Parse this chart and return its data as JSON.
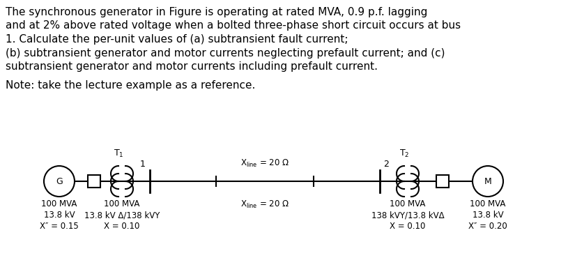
{
  "text_block": [
    "The synchronous generator in Figure is operating at rated MVA, 0.9 p.f. lagging",
    "and at 2% above rated voltage when a bolted three-phase short circuit occurs at bus",
    "1. Calculate the per-unit values of (a) subtransient fault current;",
    "(b) subtransient generator and motor currents neglecting prefault current; and (c)",
    "subtransient generator and motor currents including prefault current."
  ],
  "note_line": "Note: take the lecture example as a reference.",
  "bg_color": "#ffffff",
  "text_color": "#000000",
  "font_size_text": 11.0,
  "font_size_diagram": 9.0,
  "font_size_label": 8.5
}
